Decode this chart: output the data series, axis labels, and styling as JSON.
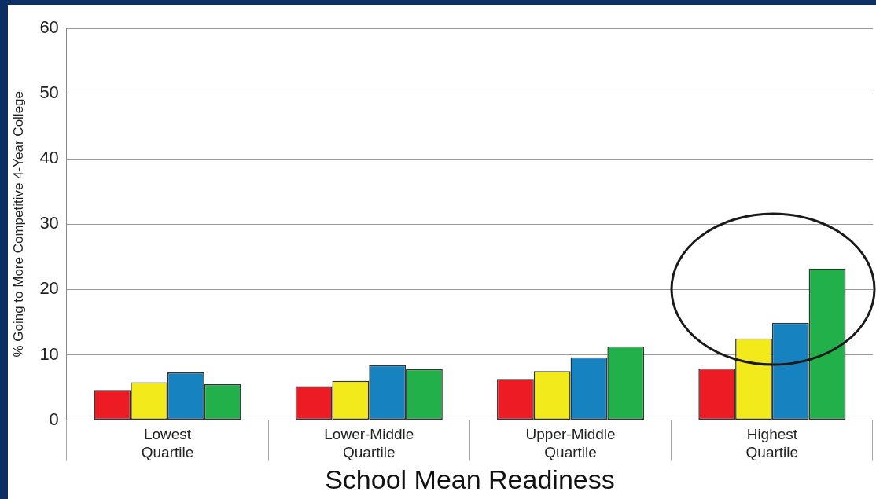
{
  "chart_data": {
    "type": "bar",
    "xlabel": "School Mean Readiness",
    "ylabel": "% Going to More Competitive 4-Year College",
    "categories": [
      "Lowest Quartile",
      "Lower-Middle Quartile",
      "Upper-Middle Quartile",
      "Highest Quartile"
    ],
    "series": [
      {
        "color": "#ed1c24",
        "values": [
          4.6,
          5.2,
          6.3,
          7.9
        ]
      },
      {
        "color": "#f2ea1a",
        "values": [
          5.8,
          6.0,
          7.5,
          12.5
        ]
      },
      {
        "color": "#1682bf",
        "values": [
          7.3,
          8.4,
          9.6,
          14.9
        ]
      },
      {
        "color": "#22b04b",
        "values": [
          5.5,
          7.8,
          11.3,
          23.2
        ]
      }
    ],
    "ylim": [
      0,
      60
    ],
    "yticks": [
      0,
      10,
      20,
      30,
      40,
      50,
      60
    ],
    "grid": "y",
    "legend": false
  }
}
